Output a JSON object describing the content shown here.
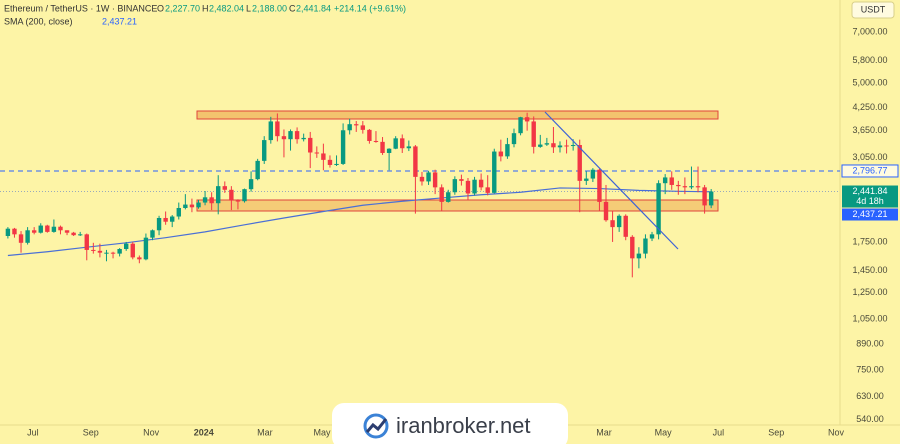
{
  "header": {
    "symbol": "Ethereum / TetherUS · 1W · BINANCE",
    "open_label": "O",
    "open": "2,227.70",
    "high_label": "H",
    "high": "2,482.04",
    "low_label": "L",
    "low": "2,188.00",
    "close_label": "C",
    "close": "2,441.84",
    "change": "+214.14 (+9.61%)",
    "indicator": "SMA (200, close)",
    "indicator_value": "2,437.21"
  },
  "currency_button": "USDT",
  "watermark": "iranbroker.net",
  "chart_data": {
    "type": "candlestick",
    "categories": [
      null,
      null,
      null,
      null,
      null,
      null,
      null,
      null,
      null,
      null,
      null,
      null,
      null,
      null,
      null,
      null,
      null,
      null,
      null,
      null,
      null,
      null,
      null,
      null,
      null,
      null,
      null,
      null,
      null,
      null,
      null,
      null,
      null,
      null,
      null,
      null,
      null,
      null,
      null,
      null,
      null,
      null,
      null,
      null,
      null,
      null,
      null,
      null,
      null,
      null,
      null,
      null,
      null,
      null,
      null,
      null,
      null,
      null,
      null,
      null,
      null,
      null,
      null,
      null,
      null,
      null,
      null,
      null,
      null,
      null,
      null,
      null,
      null,
      null,
      null,
      null,
      null,
      null,
      null,
      null,
      null,
      null,
      null,
      null,
      null,
      null,
      null,
      null,
      null,
      null,
      null,
      null,
      null,
      null,
      null,
      null,
      null,
      null,
      null,
      null,
      null,
      null,
      null,
      null,
      null,
      null,
      null,
      null
    ],
    "open": [
      1820,
      1910,
      1840,
      1740,
      1890,
      1860,
      1950,
      1870,
      1935,
      1890,
      1860,
      1830,
      1840,
      1660,
      1650,
      1630,
      1630,
      1620,
      1670,
      1730,
      1580,
      1560,
      1800,
      1890,
      2050,
      2000,
      2070,
      2190,
      2240,
      2200,
      2270,
      2350,
      2260,
      2530,
      2470,
      2300,
      2290,
      2480,
      2650,
      2990,
      3430,
      3880,
      3520,
      3450,
      3640,
      3450,
      3480,
      3160,
      3140,
      3010,
      2910,
      2930,
      3660,
      3810,
      3780,
      3670,
      3410,
      3390,
      3150,
      3240,
      3470,
      3250,
      3290,
      2690,
      2610,
      2770,
      2510,
      2280,
      2430,
      2650,
      2620,
      2410,
      2640,
      2510,
      2420,
      3180,
      3080,
      3340,
      3590,
      3990,
      3880,
      3280,
      3330,
      3360,
      3270,
      3310,
      3300,
      3320,
      2620,
      2660,
      2820,
      2280,
      2020,
      1930,
      2080,
      1810,
      1570,
      1620,
      1790,
      1840,
      2580,
      2680,
      2550,
      2530,
      2510,
      2530,
      2510,
      2227.7
    ],
    "high": [
      1930,
      1920,
      1880,
      1930,
      1930,
      1980,
      1960,
      2030,
      1950,
      1890,
      1870,
      1870,
      1850,
      1740,
      1730,
      1660,
      1640,
      1680,
      1750,
      1750,
      1600,
      1850,
      1900,
      2080,
      2140,
      2090,
      2270,
      2400,
      2330,
      2310,
      2450,
      2430,
      2720,
      2610,
      2530,
      2320,
      2490,
      2790,
      3030,
      3520,
      4000,
      4090,
      3680,
      3680,
      3730,
      3580,
      3620,
      3290,
      3350,
      3100,
      3100,
      3830,
      3950,
      3890,
      3890,
      3690,
      3640,
      3500,
      3250,
      3520,
      3560,
      3420,
      3320,
      2780,
      2800,
      2820,
      2560,
      2470,
      2700,
      2730,
      2670,
      2690,
      2750,
      2720,
      3240,
      3440,
      3480,
      3700,
      4000,
      4110,
      4010,
      3550,
      3480,
      3740,
      3400,
      3440,
      3450,
      3440,
      2790,
      2850,
      2840,
      2550,
      2150,
      2100,
      2100,
      1830,
      1690,
      1840,
      1870,
      2630,
      2740,
      2790,
      2620,
      2680,
      2880,
      2880,
      2550,
      2482.04
    ],
    "low": [
      1790,
      1800,
      1630,
      1720,
      1840,
      1850,
      1860,
      1860,
      1840,
      1830,
      1820,
      1820,
      1550,
      1620,
      1580,
      1540,
      1570,
      1590,
      1650,
      1560,
      1520,
      1550,
      1770,
      1830,
      1960,
      1930,
      2030,
      2170,
      2130,
      2180,
      2230,
      2160,
      2100,
      2420,
      2160,
      2170,
      2270,
      2440,
      2630,
      2930,
      3350,
      3400,
      3060,
      3200,
      3350,
      3400,
      2850,
      3050,
      2810,
      2860,
      2890,
      2910,
      3560,
      3620,
      3580,
      3350,
      3370,
      3110,
      2810,
      3230,
      3150,
      3190,
      2110,
      2540,
      2550,
      2400,
      2150,
      2270,
      2390,
      2540,
      2310,
      2380,
      2460,
      2380,
      2410,
      2980,
      3030,
      3270,
      3540,
      3650,
      3140,
      3260,
      3300,
      3150,
      3160,
      3140,
      3200,
      2130,
      2550,
      2600,
      2150,
      2000,
      1750,
      1870,
      1770,
      1385,
      1470,
      1570,
      1760,
      1780,
      2400,
      2470,
      2390,
      2400,
      2480,
      2430,
      2110,
      2188.0
    ],
    "close": [
      1910,
      1840,
      1740,
      1890,
      1860,
      1950,
      1870,
      1935,
      1890,
      1860,
      1830,
      1840,
      1660,
      1650,
      1630,
      1630,
      1620,
      1670,
      1730,
      1580,
      1560,
      1800,
      1890,
      2050,
      2000,
      2070,
      2190,
      2240,
      2200,
      2270,
      2350,
      2260,
      2530,
      2470,
      2300,
      2290,
      2480,
      2650,
      2990,
      3430,
      3880,
      3520,
      3450,
      3640,
      3450,
      3480,
      3160,
      3140,
      3010,
      2910,
      2930,
      3660,
      3810,
      3780,
      3670,
      3410,
      3390,
      3150,
      3240,
      3470,
      3250,
      3290,
      2690,
      2610,
      2770,
      2510,
      2280,
      2430,
      2650,
      2620,
      2410,
      2640,
      2510,
      2420,
      3180,
      3080,
      3340,
      3590,
      3990,
      3880,
      3280,
      3330,
      3360,
      3270,
      3310,
      3300,
      3320,
      2620,
      2660,
      2820,
      2280,
      2020,
      1930,
      2080,
      1810,
      1570,
      1620,
      1790,
      1840,
      2580,
      2680,
      2550,
      2530,
      2510,
      2530,
      2510,
      2227.7,
      2441.84
    ],
    "up_color": "#089981",
    "down_color": "#f23645",
    "xlim": [
      -1.2,
      126.6
    ],
    "xticks": [
      {
        "value": 3.8,
        "label": "Jul"
      },
      {
        "value": 12.6,
        "label": "Sep"
      },
      {
        "value": 21.8,
        "label": "Nov"
      },
      {
        "value": 29.8,
        "label": "2024"
      },
      {
        "value": 39.1,
        "label": "Mar"
      },
      {
        "value": 47.8,
        "label": "May"
      },
      {
        "value": 90.7,
        "label": "Mar"
      },
      {
        "value": 99.7,
        "label": "May"
      },
      {
        "value": 108.1,
        "label": "Jul"
      },
      {
        "value": 116.9,
        "label": "Sep"
      },
      {
        "value": 126.0,
        "label": "Nov"
      }
    ],
    "ylim": [
      522,
      8656
    ],
    "log_scale": true,
    "yticks": [
      {
        "value": 7000,
        "label": "7,000.00"
      },
      {
        "value": 5800,
        "label": "5,800.00"
      },
      {
        "value": 5000,
        "label": "5,000.00"
      },
      {
        "value": 4250,
        "label": "4,250.00"
      },
      {
        "value": 3650,
        "label": "3,650.00"
      },
      {
        "value": 3050,
        "label": "3,050.00"
      },
      {
        "value": 1750,
        "label": "1,750.00"
      },
      {
        "value": 1450,
        "label": "1,450.00"
      },
      {
        "value": 1250,
        "label": "1,250.00"
      },
      {
        "value": 1050,
        "label": "1,050.00"
      },
      {
        "value": 890,
        "label": "890.00"
      },
      {
        "value": 750,
        "label": "750.00"
      },
      {
        "value": 630,
        "label": "630.00"
      },
      {
        "value": 540,
        "label": "540.00"
      }
    ],
    "sma": {
      "color": "#4a6fd6",
      "x": [
        0,
        6,
        12,
        18,
        24,
        30,
        36,
        42,
        48,
        54,
        60,
        66,
        72,
        78,
        84,
        90,
        96,
        102,
        107
      ],
      "values": [
        1600,
        1640,
        1690,
        1740,
        1800,
        1870,
        1960,
        2050,
        2140,
        2230,
        2290,
        2340,
        2390,
        2430,
        2500,
        2490,
        2460,
        2445,
        2437.21
      ]
    },
    "price_line": {
      "value": 2796.77,
      "label": "2,796.77",
      "color": "#2962ff"
    },
    "last_price": {
      "value": 2441.84,
      "label": "2,441.84",
      "countdown": "4d 18h"
    },
    "sma_last": {
      "value": 2437.21,
      "label": "2,437.21"
    }
  }
}
